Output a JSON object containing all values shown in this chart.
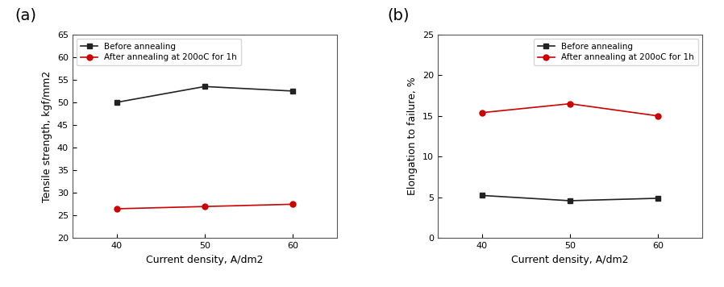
{
  "x": [
    40,
    50,
    60
  ],
  "tensile_before": [
    50.0,
    53.5,
    52.5
  ],
  "tensile_after": [
    26.5,
    27.0,
    27.5
  ],
  "elongation_before": [
    5.25,
    4.6,
    4.9
  ],
  "elongation_after": [
    15.4,
    16.5,
    15.0
  ],
  "tensile_ylabel": "Tensile strength, kgf/mm2",
  "elongation_ylabel": "Elongation to failure, %",
  "xlabel": "Current density, A/dm2",
  "legend_before": "Before annealing",
  "legend_after": "After annealing at 200oC for 1h",
  "label_a": "(a)",
  "label_b": "(b)",
  "color_before": "#222222",
  "color_after": "#cc0000",
  "tensile_ylim": [
    20,
    65
  ],
  "tensile_yticks": [
    20,
    25,
    30,
    35,
    40,
    45,
    50,
    55,
    60,
    65
  ],
  "elongation_ylim": [
    0,
    25
  ],
  "elongation_yticks": [
    0,
    5,
    10,
    15,
    20,
    25
  ],
  "xlim": [
    35,
    65
  ],
  "xticks": [
    40,
    50,
    60
  ],
  "bg_color": "#ffffff"
}
